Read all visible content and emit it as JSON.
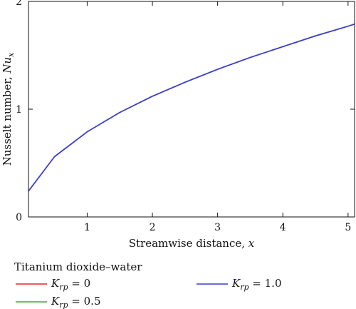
{
  "chart_data": {
    "type": "line",
    "xlabel_text": "Streamwise distance, ",
    "xlabel_var": "x",
    "ylabel_text": "Nusselt number, ",
    "ylabel_var": "Nu",
    "ylabel_sub": "x",
    "xlim": [
      0.1,
      5.1
    ],
    "ylim": [
      0,
      2.0
    ],
    "xticks": [
      1,
      2,
      3,
      4,
      5
    ],
    "yticks": [
      0,
      1,
      2
    ],
    "grid": false,
    "legend_title": "Titanium dioxide–water",
    "legend_placement": "below",
    "series": [
      {
        "name_var": "K",
        "name_sub": "rp",
        "name_value": " = 0",
        "color": "#e8262a",
        "x": [
          0.1,
          0.5,
          1.0,
          1.5,
          2.0,
          2.5,
          3.0,
          3.5,
          4.0,
          4.5,
          5.0,
          5.1
        ],
        "y": [
          0.24,
          0.56,
          0.79,
          0.97,
          1.12,
          1.25,
          1.37,
          1.48,
          1.58,
          1.68,
          1.77,
          1.79
        ]
      },
      {
        "name_var": "K",
        "name_sub": "rp",
        "name_value": " = 0.5",
        "color": "#34b233",
        "x": [
          0.1,
          0.5,
          1.0,
          1.5,
          2.0,
          2.5,
          3.0,
          3.5,
          4.0,
          4.5,
          5.0,
          5.1
        ],
        "y": [
          0.24,
          0.56,
          0.79,
          0.97,
          1.12,
          1.25,
          1.37,
          1.48,
          1.58,
          1.68,
          1.77,
          1.79
        ]
      },
      {
        "name_var": "K",
        "name_sub": "rp",
        "name_value": " = 1.0",
        "color": "#3a3adf",
        "x": [
          0.1,
          0.5,
          1.0,
          1.5,
          2.0,
          2.5,
          3.0,
          3.5,
          4.0,
          4.5,
          5.0,
          5.1
        ],
        "y": [
          0.24,
          0.56,
          0.79,
          0.97,
          1.12,
          1.25,
          1.37,
          1.48,
          1.58,
          1.68,
          1.77,
          1.79
        ]
      }
    ]
  }
}
